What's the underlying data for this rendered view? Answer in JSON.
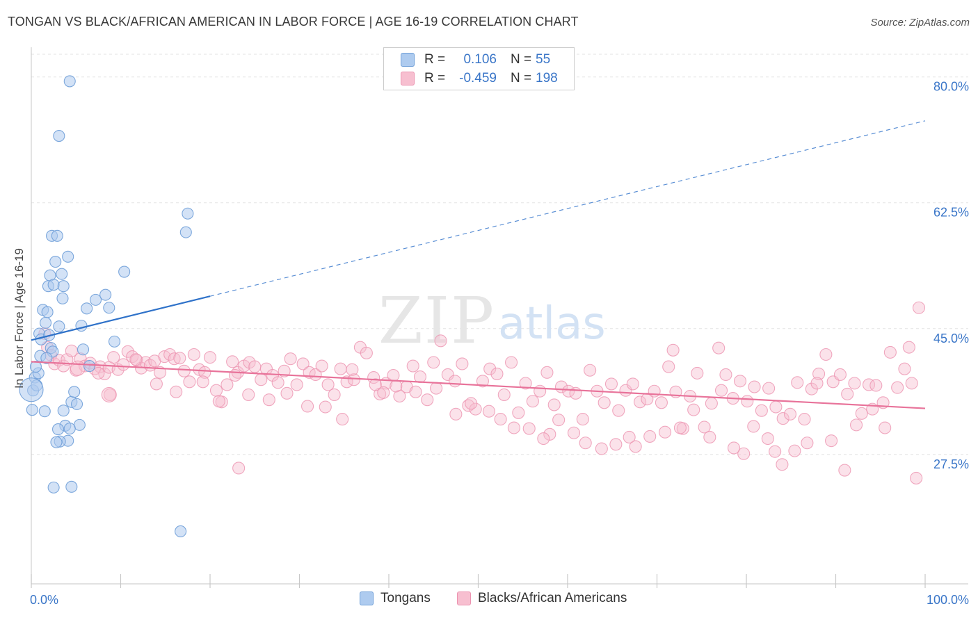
{
  "header": {
    "title": "TONGAN VS BLACK/AFRICAN AMERICAN IN LABOR FORCE | AGE 16-19 CORRELATION CHART",
    "source": "Source: ZipAtlas.com"
  },
  "watermark": {
    "zip": "ZIP",
    "atlas": "atlas"
  },
  "colors": {
    "tongans_fill": "#aecbef",
    "tongans_stroke": "#6f9fd8",
    "tongans_line": "#2f72c9",
    "blacks_fill": "#f7bfd0",
    "blacks_stroke": "#ec93b0",
    "blacks_line": "#e8739a",
    "value_text": "#3a76c8",
    "grid": "#e3e3e3"
  },
  "stats": {
    "rows": [
      {
        "r_label": "R =",
        "r_value": "0.106",
        "n_label": "N =",
        "n_value": "55",
        "series": "Tongans"
      },
      {
        "r_label": "R =",
        "r_value": "-0.459",
        "n_label": "N =",
        "n_value": "198",
        "series": "Blacks/African Americans"
      }
    ]
  },
  "chart_data": {
    "type": "scatter",
    "title": "TONGAN VS BLACK/AFRICAN AMERICAN IN LABOR FORCE | AGE 16-19 CORRELATION CHART",
    "xlabel": "",
    "ylabel": "In Labor Force | Age 16-19",
    "xlim": [
      0,
      100
    ],
    "ylim": [
      9.5,
      82
    ],
    "x_tick_labels": [
      "0.0%",
      "100.0%"
    ],
    "y_ticks": [
      27.5,
      45.0,
      62.5,
      80.0
    ],
    "y_tick_labels": [
      "27.5%",
      "45.0%",
      "62.5%",
      "80.0%"
    ],
    "grid": true,
    "legend": "bottom",
    "series": [
      {
        "name": "Tongans",
        "r": 0.106,
        "n": 55,
        "trend": {
          "x0": 0,
          "y0": 43.4,
          "x1": 20,
          "y1": 49.5,
          "dashed_to_x": 100,
          "dashed_to_y": 73.9
        },
        "points": [
          [
            0.2,
            36.4
          ],
          [
            0.4,
            38.2
          ],
          [
            0.6,
            37.1
          ],
          [
            0.8,
            38.8
          ],
          [
            1.0,
            41.2
          ],
          [
            0.5,
            39.7
          ],
          [
            0.9,
            44.3
          ],
          [
            1.1,
            43.5
          ],
          [
            1.3,
            47.6
          ],
          [
            1.6,
            45.8
          ],
          [
            1.8,
            47.3
          ],
          [
            2.0,
            44.1
          ],
          [
            2.2,
            42.3
          ],
          [
            2.4,
            41.8
          ],
          [
            1.7,
            40.9
          ],
          [
            1.9,
            50.9
          ],
          [
            2.1,
            52.4
          ],
          [
            2.3,
            57.9
          ],
          [
            2.5,
            51.1
          ],
          [
            2.7,
            54.3
          ],
          [
            2.9,
            57.9
          ],
          [
            3.1,
            45.3
          ],
          [
            3.4,
            52.6
          ],
          [
            3.5,
            49.2
          ],
          [
            3.6,
            50.9
          ],
          [
            4.1,
            55.0
          ],
          [
            4.3,
            79.4
          ],
          [
            3.1,
            71.8
          ],
          [
            3.6,
            33.6
          ],
          [
            4.5,
            34.8
          ],
          [
            4.8,
            36.2
          ],
          [
            5.1,
            34.5
          ],
          [
            5.4,
            31.6
          ],
          [
            3.8,
            31.5
          ],
          [
            4.3,
            31.1
          ],
          [
            3.0,
            31.0
          ],
          [
            4.1,
            29.4
          ],
          [
            3.2,
            29.3
          ],
          [
            2.8,
            29.2
          ],
          [
            2.5,
            22.9
          ],
          [
            4.5,
            23.0
          ],
          [
            1.5,
            33.5
          ],
          [
            0.1,
            33.7
          ],
          [
            5.8,
            42.1
          ],
          [
            6.5,
            39.8
          ],
          [
            6.2,
            47.8
          ],
          [
            7.2,
            49.0
          ],
          [
            8.3,
            49.7
          ],
          [
            8.7,
            47.9
          ],
          [
            9.3,
            43.2
          ],
          [
            10.4,
            52.9
          ],
          [
            17.3,
            58.4
          ],
          [
            17.5,
            61.0
          ],
          [
            16.7,
            16.8
          ],
          [
            5.6,
            45.4
          ]
        ],
        "big_point": [
          0.0,
          36.5
        ]
      },
      {
        "name": "Blacks/African Americans",
        "r": -0.459,
        "n": 198,
        "trend": {
          "x0": 0,
          "y0": 40.4,
          "x1": 100,
          "y1": 33.9
        },
        "points": [
          [
            1.5,
            44.3
          ],
          [
            1.8,
            42.4
          ],
          [
            2.2,
            41.3
          ],
          [
            2.6,
            40.1
          ],
          [
            3.1,
            40.6
          ],
          [
            3.6,
            39.8
          ],
          [
            4.0,
            40.7
          ],
          [
            4.5,
            41.9
          ],
          [
            5.0,
            39.2
          ],
          [
            5.5,
            40.8
          ],
          [
            6.0,
            39.8
          ],
          [
            6.6,
            40.2
          ],
          [
            7.1,
            39.4
          ],
          [
            7.7,
            39.7
          ],
          [
            8.2,
            38.7
          ],
          [
            8.7,
            39.6
          ],
          [
            9.2,
            41.0
          ],
          [
            9.7,
            39.3
          ],
          [
            10.3,
            40.0
          ],
          [
            10.8,
            41.8
          ],
          [
            11.3,
            41.1
          ],
          [
            11.8,
            40.6
          ],
          [
            12.3,
            39.5
          ],
          [
            12.8,
            40.3
          ],
          [
            13.3,
            39.9
          ],
          [
            13.8,
            40.5
          ],
          [
            14.4,
            38.9
          ],
          [
            14.9,
            41.1
          ],
          [
            15.5,
            41.4
          ],
          [
            16.0,
            40.8
          ],
          [
            16.6,
            40.9
          ],
          [
            17.1,
            39.1
          ],
          [
            17.7,
            37.6
          ],
          [
            18.2,
            41.4
          ],
          [
            18.8,
            39.3
          ],
          [
            19.4,
            38.9
          ],
          [
            20.0,
            41.0
          ],
          [
            20.7,
            36.4
          ],
          [
            21.3,
            34.8
          ],
          [
            21.9,
            37.2
          ],
          [
            22.5,
            40.4
          ],
          [
            23.1,
            38.9
          ],
          [
            23.8,
            39.8
          ],
          [
            24.4,
            40.3
          ],
          [
            25.0,
            39.7
          ],
          [
            25.7,
            37.9
          ],
          [
            26.3,
            39.4
          ],
          [
            27.0,
            38.5
          ],
          [
            27.6,
            37.5
          ],
          [
            28.3,
            39.1
          ],
          [
            29.0,
            40.8
          ],
          [
            29.7,
            37.2
          ],
          [
            30.4,
            40.1
          ],
          [
            31.1,
            38.9
          ],
          [
            31.8,
            38.6
          ],
          [
            32.5,
            39.8
          ],
          [
            33.2,
            37.2
          ],
          [
            33.9,
            35.8
          ],
          [
            34.6,
            39.4
          ],
          [
            35.3,
            37.6
          ],
          [
            36.1,
            37.9
          ],
          [
            36.8,
            42.4
          ],
          [
            37.5,
            41.6
          ],
          [
            38.3,
            38.2
          ],
          [
            39.0,
            35.9
          ],
          [
            39.7,
            37.4
          ],
          [
            40.5,
            38.5
          ],
          [
            41.2,
            35.6
          ],
          [
            42.0,
            36.9
          ],
          [
            42.7,
            39.8
          ],
          [
            43.5,
            38.3
          ],
          [
            44.3,
            35.1
          ],
          [
            45.0,
            40.3
          ],
          [
            45.8,
            43.3
          ],
          [
            46.6,
            38.6
          ],
          [
            47.4,
            37.7
          ],
          [
            48.2,
            40.1
          ],
          [
            48.9,
            34.3
          ],
          [
            49.7,
            33.8
          ],
          [
            50.5,
            37.7
          ],
          [
            51.3,
            39.4
          ],
          [
            52.1,
            38.7
          ],
          [
            52.9,
            35.8
          ],
          [
            53.7,
            40.3
          ],
          [
            54.5,
            33.3
          ],
          [
            55.3,
            37.4
          ],
          [
            56.1,
            34.9
          ],
          [
            56.9,
            36.3
          ],
          [
            57.7,
            38.9
          ],
          [
            58.5,
            34.4
          ],
          [
            59.3,
            36.9
          ],
          [
            60.1,
            36.3
          ],
          [
            60.9,
            36.0
          ],
          [
            61.7,
            32.4
          ],
          [
            62.5,
            39.2
          ],
          [
            63.3,
            36.3
          ],
          [
            64.1,
            34.7
          ],
          [
            64.9,
            37.3
          ],
          [
            65.7,
            33.6
          ],
          [
            66.5,
            36.4
          ],
          [
            67.3,
            37.3
          ],
          [
            68.1,
            34.8
          ],
          [
            68.9,
            35.2
          ],
          [
            69.7,
            36.3
          ],
          [
            70.5,
            34.7
          ],
          [
            71.3,
            39.7
          ],
          [
            72.1,
            36.2
          ],
          [
            72.9,
            31.1
          ],
          [
            73.7,
            35.6
          ],
          [
            74.5,
            38.8
          ],
          [
            75.3,
            31.3
          ],
          [
            76.1,
            34.6
          ],
          [
            76.9,
            42.3
          ],
          [
            77.7,
            38.6
          ],
          [
            78.5,
            35.3
          ],
          [
            79.3,
            37.7
          ],
          [
            80.1,
            34.9
          ],
          [
            80.9,
            36.9
          ],
          [
            81.7,
            33.6
          ],
          [
            82.5,
            36.7
          ],
          [
            83.3,
            34.1
          ],
          [
            84.1,
            32.5
          ],
          [
            84.9,
            33.1
          ],
          [
            85.7,
            37.5
          ],
          [
            86.5,
            32.4
          ],
          [
            87.3,
            36.6
          ],
          [
            88.1,
            38.7
          ],
          [
            88.9,
            41.4
          ],
          [
            89.7,
            37.6
          ],
          [
            90.5,
            38.6
          ],
          [
            91.3,
            35.9
          ],
          [
            92.1,
            37.4
          ],
          [
            92.9,
            33.2
          ],
          [
            93.7,
            37.2
          ],
          [
            94.5,
            37.1
          ],
          [
            95.3,
            34.7
          ],
          [
            96.1,
            41.7
          ],
          [
            96.9,
            36.8
          ],
          [
            97.7,
            39.4
          ],
          [
            98.5,
            37.4
          ],
          [
            99.3,
            47.9
          ],
          [
            99.0,
            24.2
          ],
          [
            98.2,
            42.4
          ],
          [
            95.5,
            31.2
          ],
          [
            94.1,
            33.8
          ],
          [
            92.3,
            31.6
          ],
          [
            91.0,
            25.3
          ],
          [
            89.5,
            29.4
          ],
          [
            87.9,
            37.4
          ],
          [
            86.8,
            29.1
          ],
          [
            85.4,
            28.0
          ],
          [
            84.0,
            26.1
          ],
          [
            83.2,
            27.9
          ],
          [
            82.4,
            29.7
          ],
          [
            80.8,
            31.4
          ],
          [
            79.7,
            27.6
          ],
          [
            78.6,
            28.4
          ],
          [
            77.2,
            36.4
          ],
          [
            75.9,
            29.9
          ],
          [
            74.1,
            33.7
          ],
          [
            72.6,
            31.2
          ],
          [
            71.8,
            42.0
          ],
          [
            70.9,
            30.6
          ],
          [
            69.2,
            30.0
          ],
          [
            67.6,
            28.6
          ],
          [
            66.9,
            29.9
          ],
          [
            65.4,
            28.9
          ],
          [
            63.8,
            28.3
          ],
          [
            62.0,
            29.1
          ],
          [
            60.7,
            30.5
          ],
          [
            59.0,
            32.3
          ],
          [
            58.0,
            30.3
          ],
          [
            57.3,
            29.7
          ],
          [
            55.7,
            31.1
          ],
          [
            54.0,
            31.2
          ],
          [
            52.5,
            32.4
          ],
          [
            51.2,
            33.5
          ],
          [
            49.2,
            34.6
          ],
          [
            47.5,
            33.1
          ],
          [
            45.3,
            36.7
          ],
          [
            43.0,
            36.2
          ],
          [
            40.8,
            37.0
          ],
          [
            39.4,
            36.1
          ],
          [
            38.5,
            37.2
          ],
          [
            35.9,
            39.3
          ],
          [
            34.8,
            32.4
          ],
          [
            32.9,
            34.1
          ],
          [
            30.9,
            34.2
          ],
          [
            28.6,
            36.0
          ],
          [
            26.6,
            35.1
          ],
          [
            24.3,
            35.8
          ],
          [
            22.8,
            38.5
          ],
          [
            21.0,
            34.9
          ],
          [
            19.2,
            37.6
          ],
          [
            16.2,
            36.2
          ],
          [
            14.0,
            37.3
          ],
          [
            11.7,
            40.7
          ],
          [
            8.8,
            35.8
          ],
          [
            7.5,
            38.8
          ],
          [
            23.2,
            25.6
          ]
        ],
        "big_points": [
          [
            8.7,
            35.8
          ],
          [
            5.2,
            39.5
          ]
        ]
      }
    ]
  },
  "legend": {
    "tongans": "Tongans",
    "blacks": "Blacks/African Americans"
  }
}
